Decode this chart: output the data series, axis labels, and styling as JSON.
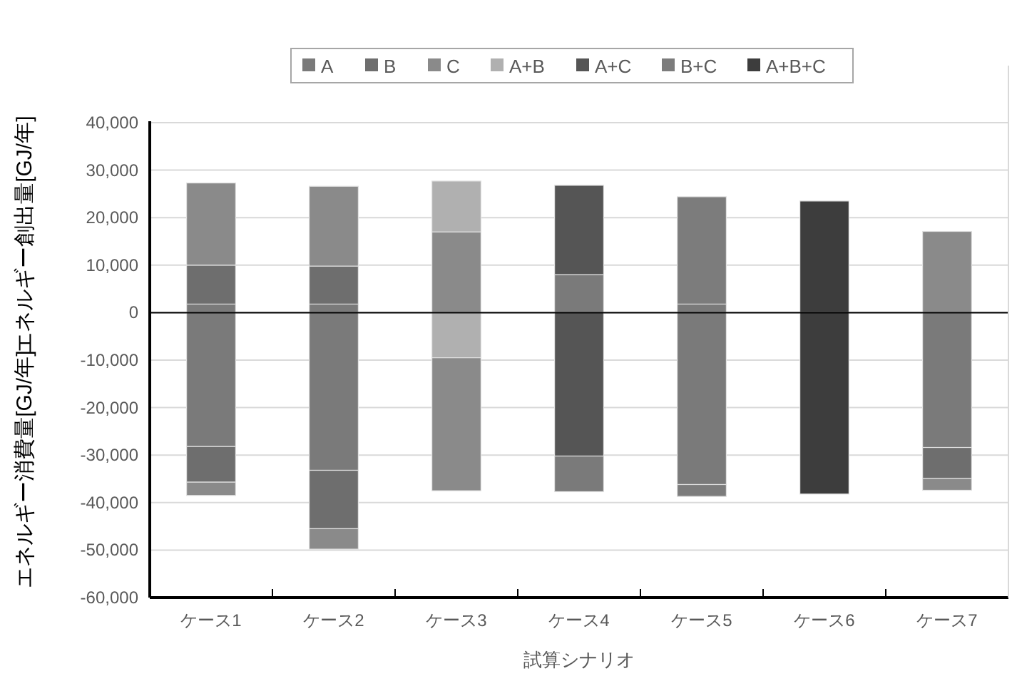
{
  "chart_data": {
    "type": "bar",
    "stacked": true,
    "xlabel": "試算シナリオ",
    "ylabel": "エネルギー創出量[GJ/年]",
    "annotations": [
      "エネルギー消費量[GJ/年]"
    ],
    "categories": [
      "ケース1",
      "ケース2",
      "ケース3",
      "ケース4",
      "ケース5",
      "ケース6",
      "ケース7"
    ],
    "ylim": [
      -60000,
      40000
    ],
    "yticks": [
      {
        "value": -60000,
        "label": "-60,000"
      },
      {
        "value": -50000,
        "label": "-50,000"
      },
      {
        "value": -40000,
        "label": "-40,000"
      },
      {
        "value": -30000,
        "label": "-30,000"
      },
      {
        "value": -20000,
        "label": "-20,000"
      },
      {
        "value": -10000,
        "label": "-10,000"
      },
      0,
      {
        "value": 10000,
        "label": "10,000"
      },
      {
        "value": 20000,
        "label": "20,000"
      },
      {
        "value": 30000,
        "label": "30,000"
      },
      {
        "value": 40000,
        "label": "40,000"
      }
    ],
    "grid": "y",
    "legend": "top",
    "series": [
      {
        "name": "A",
        "color": "#7a7a7a",
        "values": [
          1800,
          1800,
          null,
          8000,
          1800,
          null,
          null
        ]
      },
      {
        "name": "B",
        "color": "#6e6e6e",
        "values": [
          8200,
          8000,
          null,
          null,
          null,
          null,
          null
        ]
      },
      {
        "name": "C",
        "color": "#8a8a8a",
        "values": [
          17300,
          16800,
          17000,
          null,
          null,
          null,
          17100
        ]
      },
      {
        "name": "A+B",
        "color": "#b0b0b0",
        "values": [
          null,
          null,
          10700,
          null,
          null,
          null,
          null
        ]
      },
      {
        "name": "A+C",
        "color": "#555555",
        "values": [
          null,
          null,
          null,
          18800,
          null,
          null,
          null
        ]
      },
      {
        "name": "B+C",
        "color": "#7c7c7c",
        "values": [
          null,
          null,
          null,
          null,
          22600,
          null,
          null
        ]
      },
      {
        "name": "A+B+C",
        "color": "#3d3d3d",
        "values": [
          null,
          null,
          null,
          null,
          null,
          23500,
          null
        ]
      },
      {
        "color": "#b0b0b0",
        "values": [
          null,
          null,
          -9500,
          null,
          null,
          null,
          null
        ]
      },
      {
        "color": "#555555",
        "values": [
          null,
          null,
          null,
          -30200,
          null,
          null,
          null
        ]
      },
      {
        "color": "#7a7a7a",
        "values": [
          -28200,
          -33200,
          null,
          -7500,
          -36200,
          null,
          -28400
        ]
      },
      {
        "color": "#6e6e6e",
        "values": [
          -7500,
          -12300,
          null,
          null,
          null,
          null,
          -6500
        ]
      },
      {
        "color": "#8a8a8a",
        "values": [
          -2800,
          -4300,
          -28000,
          null,
          null,
          null,
          -2500
        ]
      },
      {
        "color": "#7c7c7c",
        "values": [
          null,
          null,
          null,
          null,
          -2500,
          null,
          null
        ]
      },
      {
        "color": "#3d3d3d",
        "values": [
          null,
          null,
          null,
          null,
          null,
          -38200,
          null
        ]
      }
    ]
  }
}
